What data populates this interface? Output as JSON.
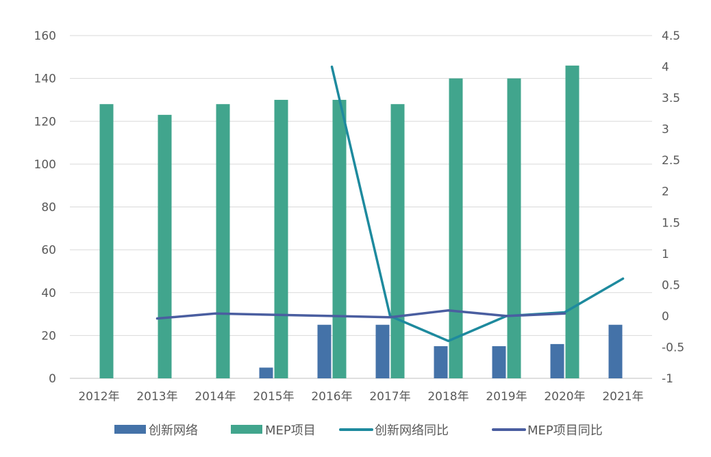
{
  "chart_data": {
    "type": "bar",
    "categories": [
      "2012年",
      "2013年",
      "2014年",
      "2015年",
      "2016年",
      "2017年",
      "2018年",
      "2019年",
      "2020年",
      "2021年"
    ],
    "series": [
      {
        "name": "创新网络",
        "type": "bar",
        "axis": "left",
        "color": "#4472a8",
        "values": [
          null,
          null,
          null,
          5,
          25,
          25,
          15,
          15,
          16,
          25
        ]
      },
      {
        "name": "MEP项目",
        "type": "bar",
        "axis": "left",
        "color": "#41a58d",
        "values": [
          128,
          123,
          128,
          130,
          130,
          128,
          140,
          140,
          146,
          null
        ]
      },
      {
        "name": "创新网络同比",
        "type": "line",
        "axis": "right",
        "color": "#1e8a9e",
        "values": [
          null,
          null,
          null,
          null,
          4,
          0,
          -0.4,
          0,
          0.06,
          0.6
        ]
      },
      {
        "name": "MEP项目同比",
        "type": "line",
        "axis": "right",
        "color": "#4a5ea0",
        "values": [
          null,
          -0.04,
          0.04,
          0.02,
          0.0,
          -0.02,
          0.09,
          0.0,
          0.04,
          null
        ]
      }
    ],
    "left_axis": {
      "ylim": [
        0,
        160
      ],
      "ticks": [
        0,
        20,
        40,
        60,
        80,
        100,
        120,
        140,
        160
      ]
    },
    "right_axis": {
      "ylim": [
        -1,
        4.5
      ],
      "ticks": [
        "-1",
        "-0.5",
        "0",
        "0.5",
        "1",
        "1.5",
        "2",
        "2.5",
        "3",
        "3.5",
        "4",
        "4.5"
      ]
    },
    "grid": true,
    "legend_position": "bottom"
  }
}
